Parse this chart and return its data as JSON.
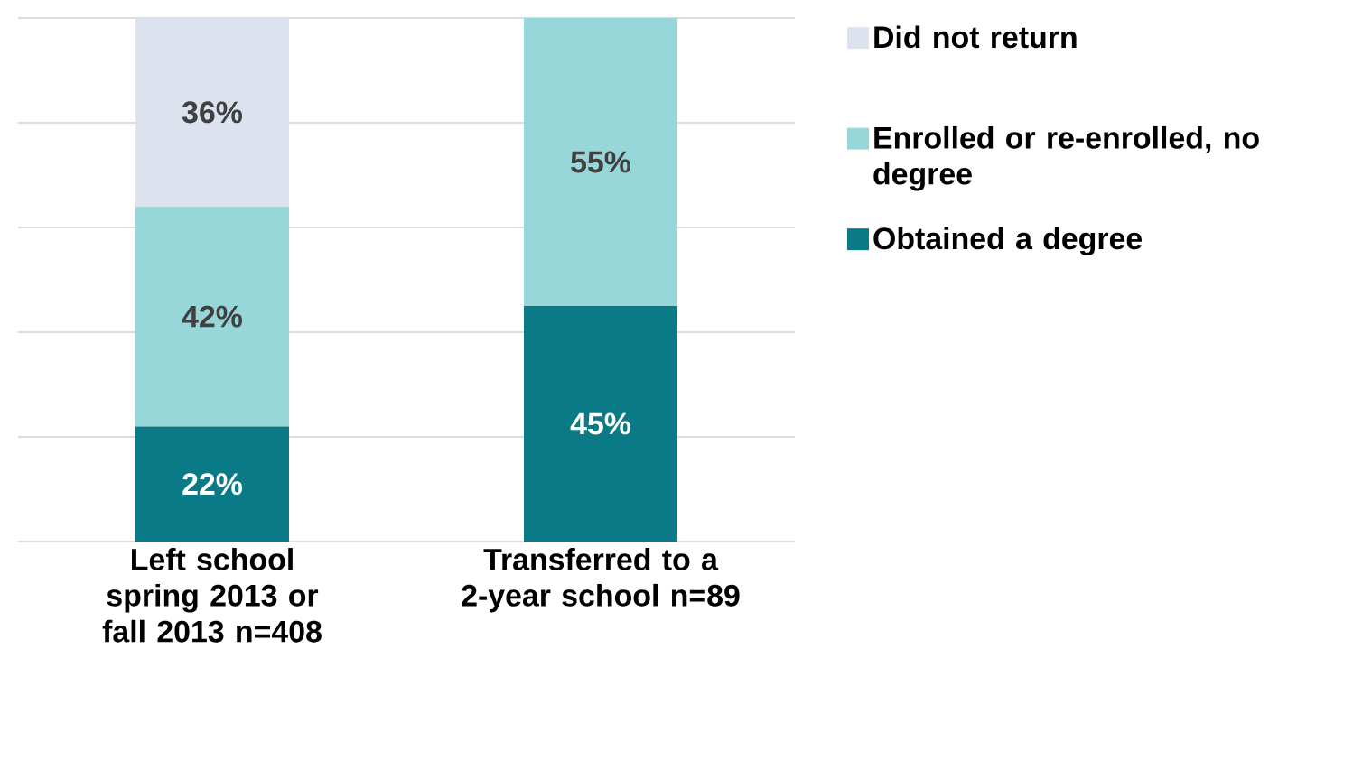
{
  "chart_data": {
    "type": "bar",
    "stacked": true,
    "categories": [
      "Left school spring 2013 or fall 2013 n=408",
      "Transferred to a 2-year school n=89"
    ],
    "series": [
      {
        "name": "Obtained a degree",
        "color": "#0a7a87",
        "values": [
          22,
          45
        ],
        "value_labels": [
          "22%",
          "45%"
        ]
      },
      {
        "name": "Enrolled or re-enrolled, no degree",
        "color": "#98d7d9",
        "values": [
          42,
          55
        ],
        "value_labels": [
          "42%",
          "55%"
        ]
      },
      {
        "name": "Did not return",
        "color": "#dde3ee",
        "values": [
          36,
          null
        ],
        "value_labels": [
          "36%",
          null
        ]
      }
    ],
    "ylim": [
      0,
      100
    ],
    "yticks": [
      {
        "value": 0,
        "label": null
      },
      {
        "value": 20,
        "label": null
      },
      {
        "value": 40,
        "label": null
      },
      {
        "value": 60,
        "label": null
      },
      {
        "value": 80,
        "label": null
      },
      {
        "value": 100,
        "label": null
      }
    ],
    "tick_labels": "x",
    "grid": "y",
    "legend": "right"
  }
}
